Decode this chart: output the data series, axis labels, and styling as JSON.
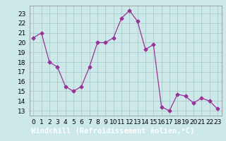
{
  "x": [
    0,
    1,
    2,
    3,
    4,
    5,
    6,
    7,
    8,
    9,
    10,
    11,
    12,
    13,
    14,
    15,
    16,
    17,
    18,
    19,
    20,
    21,
    22,
    23
  ],
  "y": [
    20.5,
    21.0,
    18.0,
    17.5,
    15.5,
    15.0,
    15.5,
    17.5,
    20.0,
    20.0,
    20.5,
    22.5,
    23.3,
    22.2,
    19.3,
    19.8,
    13.4,
    13.0,
    14.7,
    14.5,
    13.8,
    14.3,
    14.0,
    13.2
  ],
  "line_color": "#993399",
  "marker": "D",
  "marker_size": 2.5,
  "bg_color": "#cce8e8",
  "grid_color": "#aacccc",
  "xlabel": "Windchill (Refroidissement éolien,°C)",
  "xlabel_bg": "#7755aa",
  "ylabel_ticks": [
    13,
    14,
    15,
    16,
    17,
    18,
    19,
    20,
    21,
    22,
    23
  ],
  "xlim": [
    -0.5,
    23.5
  ],
  "ylim": [
    12.5,
    23.8
  ],
  "tick_fontsize": 6.5,
  "label_fontsize": 7.5
}
